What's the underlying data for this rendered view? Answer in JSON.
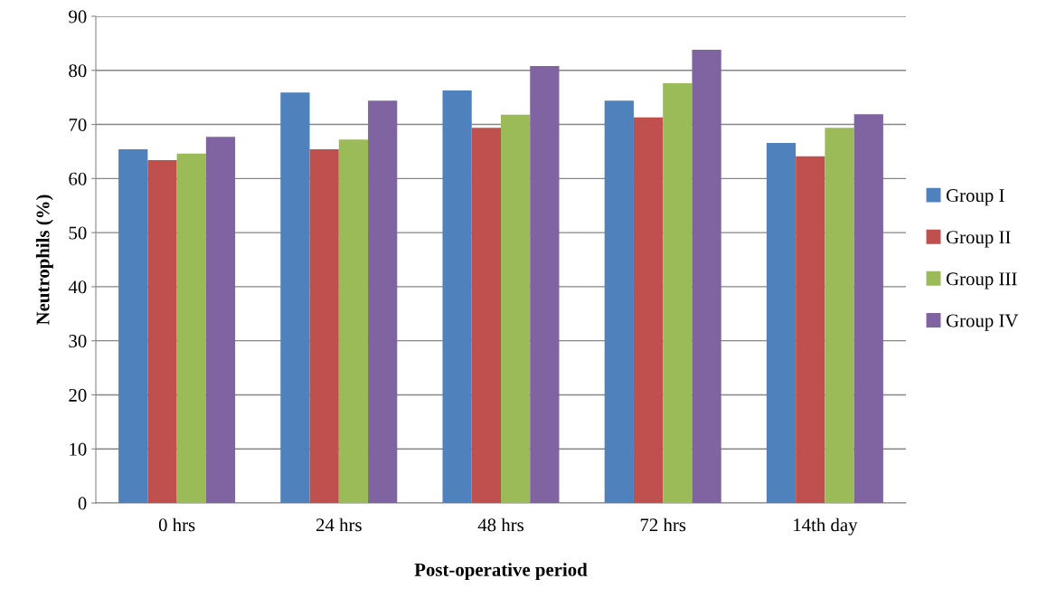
{
  "chart_data": {
    "type": "bar",
    "xlabel": "Post-operative period",
    "ylabel": "Neutrophils (%)",
    "categories": [
      "0 hrs",
      "24 hrs",
      "48 hrs",
      "72 hrs",
      "14th day"
    ],
    "series": [
      {
        "name": "Group I",
        "color": "#4f81bd",
        "values": [
          65.4,
          75.9,
          76.3,
          74.4,
          66.6
        ]
      },
      {
        "name": "Group II",
        "color": "#c0504d",
        "values": [
          63.4,
          65.4,
          69.4,
          71.3,
          64.1
        ]
      },
      {
        "name": "Group III",
        "color": "#9bbb59",
        "values": [
          64.6,
          67.2,
          71.8,
          77.6,
          69.4
        ]
      },
      {
        "name": "Group IV",
        "color": "#8064a2",
        "values": [
          67.7,
          74.4,
          80.8,
          83.8,
          71.9
        ]
      }
    ],
    "ylim": [
      0,
      90
    ],
    "yticks": [
      0,
      10,
      20,
      30,
      40,
      50,
      60,
      70,
      80,
      90
    ],
    "grid": "y",
    "legend": "right"
  }
}
